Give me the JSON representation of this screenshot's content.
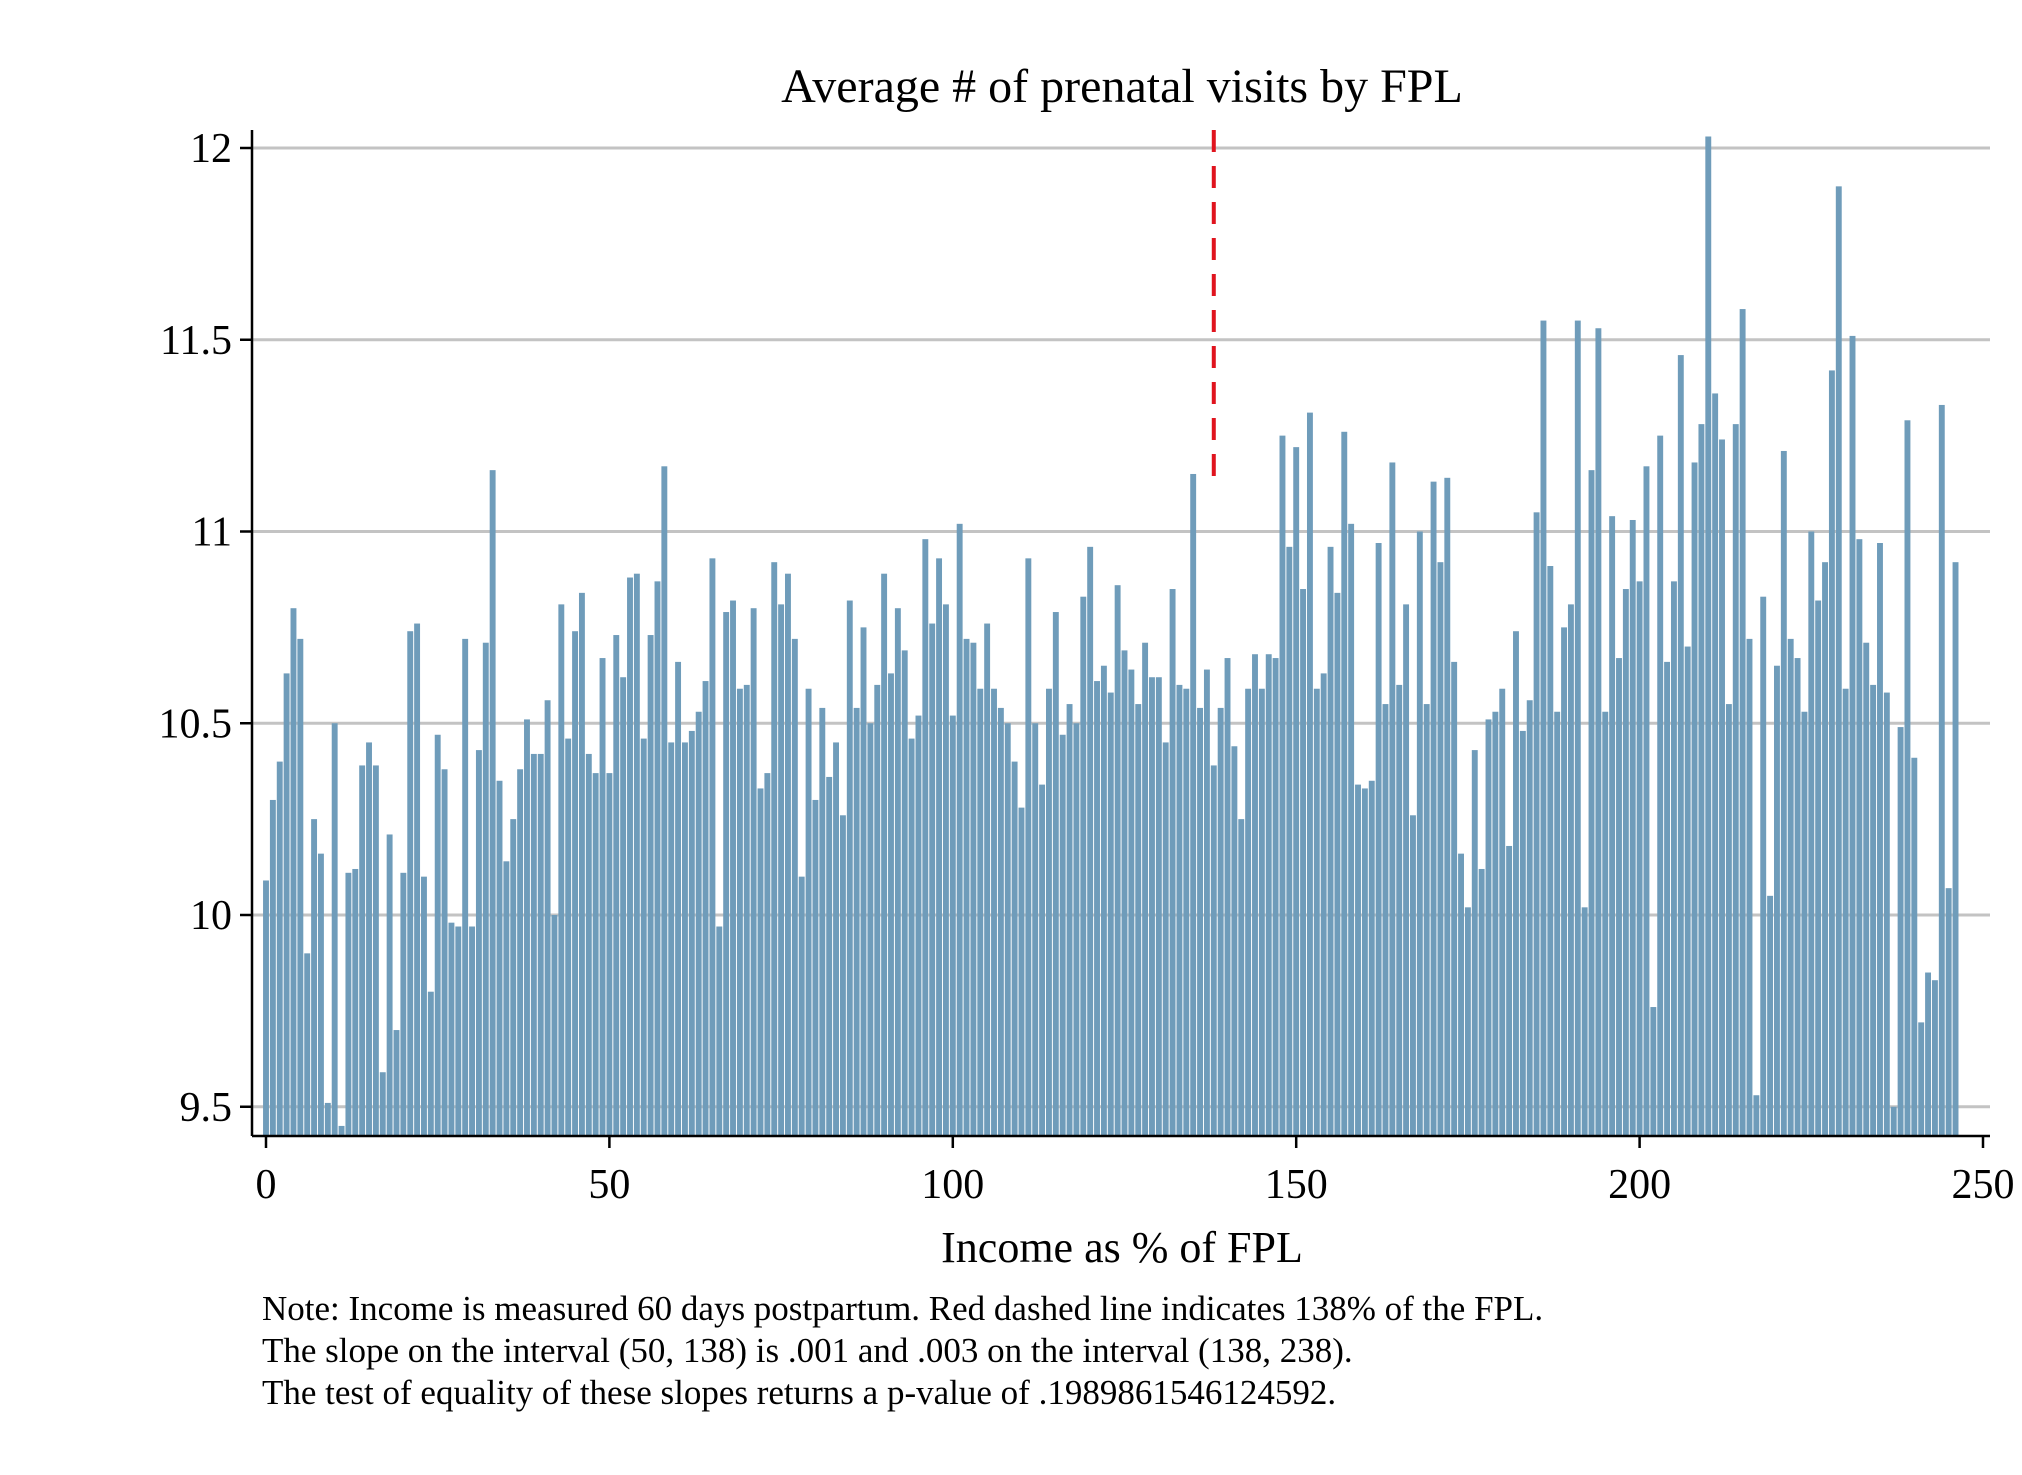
{
  "chart_data": {
    "type": "bar",
    "title": "Average # of prenatal visits by FPL",
    "xlabel": "Income as % of FPL",
    "ylabel": "",
    "xlim": [
      0,
      250
    ],
    "ylim": [
      9.45,
      12.05
    ],
    "x_ticks": [
      "0",
      "50",
      "100",
      "150",
      "200",
      "250"
    ],
    "y_ticks": [
      "9.5",
      "10",
      "10.5",
      "11",
      "11.5",
      "12"
    ],
    "grid": true,
    "bar_color": "#6f9cba",
    "reference_line": {
      "x": 138,
      "style": "dashed",
      "color": "#e0141e"
    },
    "series": [
      {
        "x_start": 0,
        "x_step": 1,
        "values": [
          10.09,
          10.3,
          10.4,
          10.63,
          10.8,
          10.72,
          9.9,
          10.25,
          10.16,
          9.51,
          10.5,
          9.45,
          10.11,
          10.12,
          10.39,
          10.45,
          10.39,
          9.59,
          10.21,
          9.7,
          10.11,
          10.74,
          10.76,
          10.1,
          9.8,
          10.47,
          10.38,
          9.98,
          9.97,
          10.72,
          9.97,
          10.43,
          10.71,
          11.16,
          10.35,
          10.14,
          10.25,
          10.38,
          10.51,
          10.42,
          10.42,
          10.56,
          10.0,
          10.81,
          10.46,
          10.74,
          10.84,
          10.42,
          10.37,
          10.67,
          10.37,
          10.73,
          10.62,
          10.88,
          10.89,
          10.46,
          10.73,
          10.87,
          11.17,
          10.45,
          10.66,
          10.45,
          10.48,
          10.53,
          10.61,
          10.93,
          9.97,
          10.79,
          10.82,
          10.59,
          10.6,
          10.8,
          10.33,
          10.37,
          10.92,
          10.81,
          10.89,
          10.72,
          10.1,
          10.59,
          10.3,
          10.54,
          10.36,
          10.45,
          10.26,
          10.82,
          10.54,
          10.75,
          10.5,
          10.6,
          10.89,
          10.63,
          10.8,
          10.69,
          10.46,
          10.52,
          10.98,
          10.76,
          10.93,
          10.81,
          10.52,
          11.02,
          10.72,
          10.71,
          10.59,
          10.76,
          10.59,
          10.54,
          10.5,
          10.4,
          10.28,
          10.93,
          10.5,
          10.34,
          10.59,
          10.79,
          10.47,
          10.55,
          10.5,
          10.83,
          10.96,
          10.61,
          10.65,
          10.58,
          10.86,
          10.69,
          10.64,
          10.55,
          10.71,
          10.62,
          10.62,
          10.45,
          10.85,
          10.6,
          10.59,
          11.15,
          10.54,
          10.64,
          10.39,
          10.54,
          10.67,
          10.44,
          10.25,
          10.59,
          10.68,
          10.59,
          10.68,
          10.67,
          11.25,
          10.96,
          11.22,
          10.85,
          11.31,
          10.59,
          10.63,
          10.96,
          10.84,
          11.26,
          11.02,
          10.34,
          10.33,
          10.35,
          10.97,
          10.55,
          11.18,
          10.6,
          10.81,
          10.26,
          11.0,
          10.55,
          11.13,
          10.92,
          11.14,
          10.66,
          10.16,
          10.02,
          10.43,
          10.12,
          10.51,
          10.53,
          10.59,
          10.18,
          10.74,
          10.48,
          10.56,
          11.05,
          11.55,
          10.91,
          10.53,
          10.75,
          10.81,
          11.55,
          10.02,
          11.16,
          11.53,
          10.53,
          11.04,
          10.67,
          10.85,
          11.03,
          10.87,
          11.17,
          9.76,
          11.25,
          10.66,
          10.87,
          11.46,
          10.7,
          11.18,
          11.28,
          12.03,
          11.36,
          11.24,
          10.55,
          11.28,
          11.58,
          10.72,
          9.53,
          10.83,
          10.05,
          10.65,
          11.21,
          10.72,
          10.67,
          10.53,
          11.0,
          10.82,
          10.92,
          11.42,
          11.9,
          10.59,
          11.51,
          10.98,
          10.71,
          10.6,
          10.97,
          10.58,
          9.5,
          10.49,
          11.29,
          10.41,
          9.72,
          9.85,
          9.83,
          11.33,
          10.07,
          10.92
        ]
      }
    ]
  },
  "notes": [
    "Note: Income is measured 60 days postpartum. Red dashed line indicates 138% of the FPL.",
    "The slope on the interval (50, 138) is .001 and .003 on the interval (138, 238).",
    "The test of equality of these slopes returns a p-value of .1989861546124592."
  ]
}
